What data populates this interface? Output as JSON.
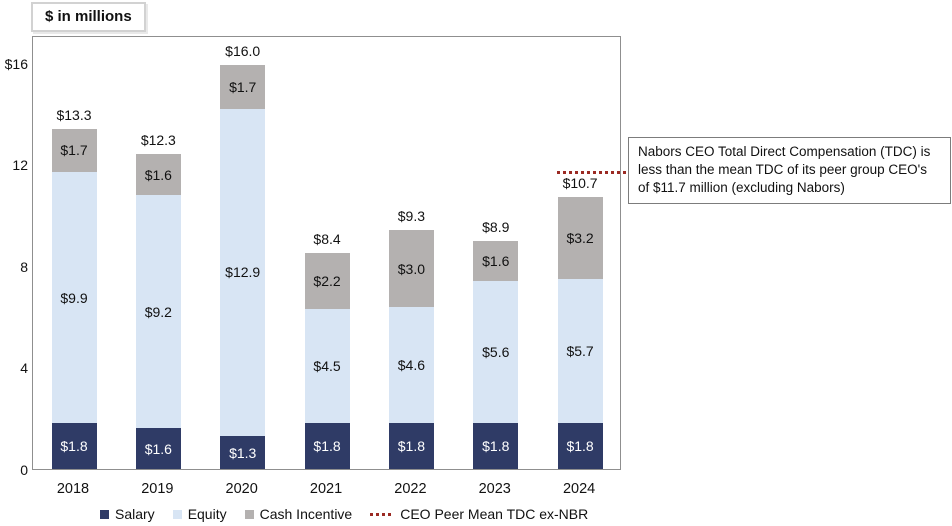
{
  "title_box": {
    "label": "$ in millions"
  },
  "callout": {
    "text": "Nabors CEO Total Direct Compensation (TDC) is less than the mean TDC of its peer group CEO's of $11.7 million (excluding Nabors)"
  },
  "colors": {
    "salary": "#2f3b66",
    "equity": "#d8e5f4",
    "cash_incentive": "#b4b1b0",
    "reference_line": "#9b2a23",
    "label_dark": "#111111",
    "label_light": "#ffffff"
  },
  "chart_data": {
    "type": "bar",
    "stacked": true,
    "title": "$ in millions",
    "xlabel": "",
    "ylabel": "$ in millions",
    "ylim": [
      0,
      17.1
    ],
    "grid": false,
    "legend_position": "bottom",
    "categories": [
      "2018",
      "2019",
      "2020",
      "2021",
      "2022",
      "2023",
      "2024"
    ],
    "series": [
      {
        "name": "Salary",
        "color": "#2f3b66",
        "label_color": "#ffffff",
        "values": [
          1.8,
          1.6,
          1.3,
          1.8,
          1.8,
          1.8,
          1.8
        ]
      },
      {
        "name": "Equity",
        "color": "#d8e5f4",
        "label_color": "#111111",
        "values": [
          9.9,
          9.2,
          12.9,
          4.5,
          4.6,
          5.6,
          5.7
        ]
      },
      {
        "name": "Cash Incentive",
        "color": "#b4b1b0",
        "label_color": "#111111",
        "values": [
          1.7,
          1.6,
          1.7,
          2.2,
          3.0,
          1.6,
          3.2
        ]
      }
    ],
    "totals": [
      13.3,
      12.3,
      16.0,
      8.4,
      9.3,
      8.9,
      10.7
    ],
    "y_ticks": [
      {
        "label": "$16",
        "value": 16
      },
      {
        "label": "12",
        "value": 12
      },
      {
        "label": "8",
        "value": 8
      },
      {
        "label": "4",
        "value": 4
      },
      {
        "label": "0",
        "value": 0
      }
    ],
    "reference_line": {
      "name": "CEO Peer Mean TDC ex-NBR",
      "value": 11.7,
      "color": "#9b2a23"
    },
    "value_prefix": "$"
  },
  "legend": {
    "items": [
      {
        "label": "Salary",
        "swatch": "square",
        "color": "#2f3b66"
      },
      {
        "label": "Equity",
        "swatch": "square",
        "color": "#d8e5f4"
      },
      {
        "label": "Cash Incentive",
        "swatch": "square",
        "color": "#b4b1b0"
      },
      {
        "label": "CEO Peer Mean TDC ex-NBR",
        "swatch": "dotted-line",
        "color": "#9b2a23"
      }
    ]
  }
}
